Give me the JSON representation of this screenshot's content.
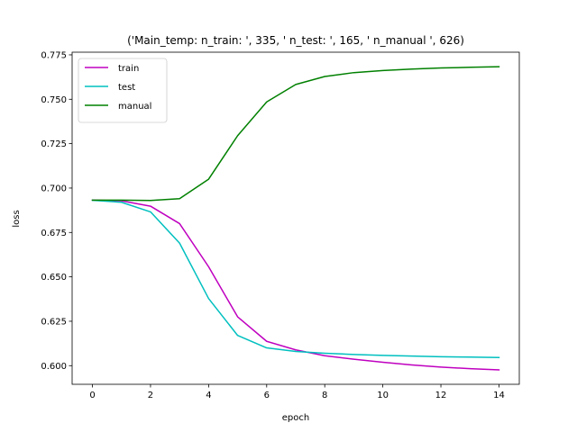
{
  "chart_data": {
    "type": "line",
    "title": "('Main_temp: n_train: ', 335, ' n_test: ', 165, ' n_manual ', 626)",
    "xlabel": "epoch",
    "ylabel": "loss",
    "xlim": [
      -0.7,
      14.7
    ],
    "ylim": [
      0.5895,
      0.7765
    ],
    "xticks": [
      0,
      2,
      4,
      6,
      8,
      10,
      12,
      14
    ],
    "xtick_labels": [
      "0",
      "2",
      "4",
      "6",
      "8",
      "10",
      "12",
      "14"
    ],
    "yticks": [
      0.6,
      0.625,
      0.65,
      0.675,
      0.7,
      0.725,
      0.75,
      0.775
    ],
    "ytick_labels": [
      "0.600",
      "0.625",
      "0.650",
      "0.675",
      "0.700",
      "0.725",
      "0.750",
      "0.775"
    ],
    "grid": false,
    "legend_position": "top-left",
    "x": [
      0,
      1,
      2,
      3,
      4,
      5,
      6,
      7,
      8,
      9,
      10,
      11,
      12,
      13,
      14
    ],
    "series": [
      {
        "name": "train",
        "color": "#bf00bf",
        "values": [
          0.6932,
          0.6928,
          0.6898,
          0.68,
          0.6557,
          0.6275,
          0.6137,
          0.6089,
          0.6056,
          0.6036,
          0.6019,
          0.6004,
          0.5992,
          0.5983,
          0.5976
        ]
      },
      {
        "name": "test",
        "color": "#00bfbf",
        "values": [
          0.6931,
          0.692,
          0.6866,
          0.669,
          0.6378,
          0.617,
          0.61,
          0.608,
          0.607,
          0.6063,
          0.6058,
          0.6054,
          0.605,
          0.6048,
          0.6046
        ]
      },
      {
        "name": "manual",
        "color": "#008000",
        "values": [
          0.6932,
          0.6932,
          0.693,
          0.694,
          0.705,
          0.7295,
          0.7485,
          0.7583,
          0.7628,
          0.765,
          0.7662,
          0.767,
          0.7676,
          0.768,
          0.7683
        ]
      }
    ]
  }
}
